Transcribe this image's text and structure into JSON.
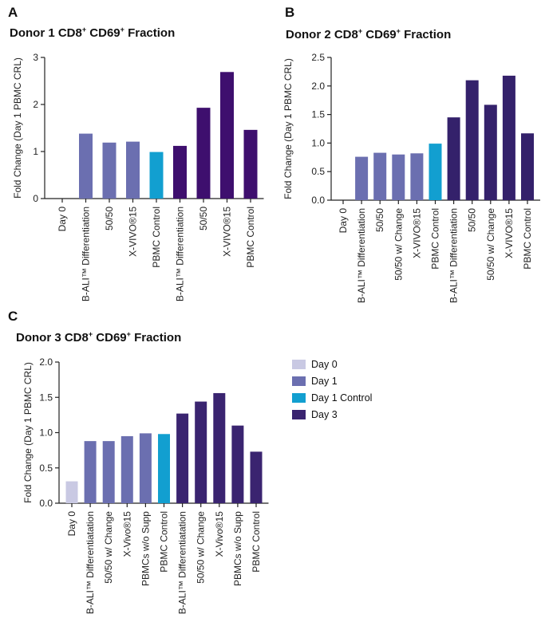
{
  "panels": [
    {
      "letter": "A",
      "title_main": "Donor 1 CD8",
      "title_sup1": "+",
      "title_mid": " CD69",
      "title_sup2": "+",
      "title_end": " Fraction"
    },
    {
      "letter": "B",
      "title_main": "Donor 2 CD8",
      "title_sup1": "+",
      "title_mid": " CD69",
      "title_sup2": "+",
      "title_end": " Fraction"
    },
    {
      "letter": "C",
      "title_main": "Donor 3 CD8",
      "title_sup1": "+",
      "title_mid": " CD69",
      "title_sup2": "+",
      "title_end": " Fraction"
    }
  ],
  "legend": [
    {
      "label": "Day 0",
      "color": "#c9c9e3"
    },
    {
      "label": "Day 1",
      "color": "#6b6fb0"
    },
    {
      "label": "Day 1 Control",
      "color": "#129fd0"
    },
    {
      "label": "Day 3",
      "color": "#3a2470"
    }
  ],
  "chart_data": [
    {
      "type": "bar",
      "title": "Donor 1 CD8+ CD69+ Fraction",
      "ylabel": "Fold Change (Day 1 PBMC CRL)",
      "ylim": [
        0,
        3
      ],
      "yticks": [
        "0",
        "1",
        "2",
        "3"
      ],
      "categories": [
        "Day 0",
        "B-ALI™ Differentiation",
        "50/50",
        "X-VIVO®15",
        "PBMC Control",
        "B-ALI™ Differentiation",
        "50/50",
        "X-VIVO®15",
        "PBMC Control"
      ],
      "values": [
        0,
        1.38,
        1.19,
        1.21,
        0.99,
        1.12,
        1.93,
        2.69,
        1.46
      ],
      "colors": [
        "#c9c9e3",
        "#6b6fb0",
        "#6b6fb0",
        "#6b6fb0",
        "#129fd0",
        "#3e0f6e",
        "#3e0f6e",
        "#3e0f6e",
        "#3e0f6e"
      ]
    },
    {
      "type": "bar",
      "title": "Donor 2 CD8+ CD69+ Fraction",
      "ylabel": "Fold Change (Day 1 PBMC CRL)",
      "ylim": [
        0,
        2.5
      ],
      "yticks": [
        "0.0",
        "0.5",
        "1.0",
        "1.5",
        "2.0",
        "2.5"
      ],
      "categories": [
        "Day 0",
        "B-ALI™ Differentiation",
        "50/50",
        "50/50 w/ Change",
        "X-VIVO®15",
        "PBMC Control",
        "B-ALI™ Differentiation",
        "50/50",
        "50/50 w/ Change",
        "X-VIVO®15",
        "PBMC Control"
      ],
      "values": [
        0,
        0.76,
        0.83,
        0.8,
        0.82,
        0.99,
        1.45,
        2.1,
        1.67,
        2.18,
        1.17
      ],
      "colors": [
        "#c9c9e3",
        "#6b6fb0",
        "#6b6fb0",
        "#6b6fb0",
        "#6b6fb0",
        "#129fd0",
        "#34216b",
        "#34216b",
        "#34216b",
        "#34216b",
        "#34216b"
      ]
    },
    {
      "type": "bar",
      "title": "Donor 3 CD8+ CD69+ Fraction",
      "ylabel": "Fold Change (Day 1 PBMC CRL)",
      "ylim": [
        0,
        2.0
      ],
      "yticks": [
        "0.0",
        "0.5",
        "1.0",
        "1.5",
        "2.0"
      ],
      "categories": [
        "Day 0",
        "B-ALI™ Differentiatation",
        "50/50 w/ Change",
        "X-Vivo®15",
        "PBMCs w/o Supp",
        "PBMC Control",
        "B-ALI™ Differentiatation",
        "50/50 w/ Change",
        "X-Vivo®15",
        "PBMCs w/o Supp",
        "PBMC Control"
      ],
      "values": [
        0.31,
        0.88,
        0.88,
        0.95,
        0.99,
        0.98,
        1.27,
        1.44,
        1.56,
        1.1,
        0.73
      ],
      "colors": [
        "#c9c9e3",
        "#6b6fb0",
        "#6b6fb0",
        "#6b6fb0",
        "#6b6fb0",
        "#129fd0",
        "#3a2470",
        "#3a2470",
        "#3a2470",
        "#3a2470",
        "#3a2470"
      ]
    }
  ]
}
